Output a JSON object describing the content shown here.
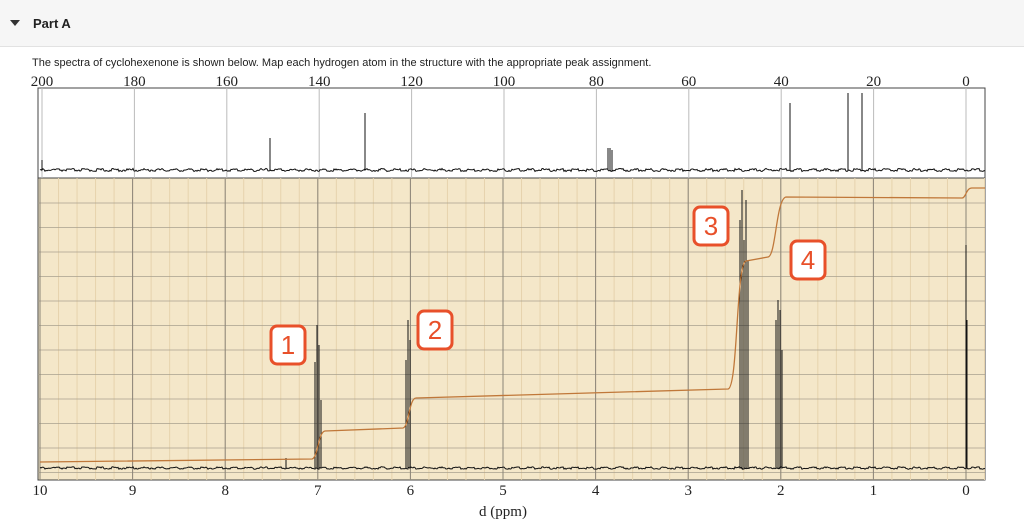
{
  "header": {
    "title": "Part A"
  },
  "instructions": "The spectra of cyclohexenone is shown below. Map each hydrogen atom in the structure with the appropriate peak assignment.",
  "spectrum": {
    "top_axis_labels": [
      200,
      180,
      160,
      140,
      120,
      100,
      80,
      60,
      40,
      20,
      0
    ],
    "bottom_axis_labels": [
      10,
      9,
      8,
      7,
      6,
      5,
      4,
      3,
      2,
      1,
      0
    ],
    "x_axis_label": "d (ppm)",
    "peak_labels": [
      "1",
      "2",
      "3",
      "4"
    ]
  }
}
